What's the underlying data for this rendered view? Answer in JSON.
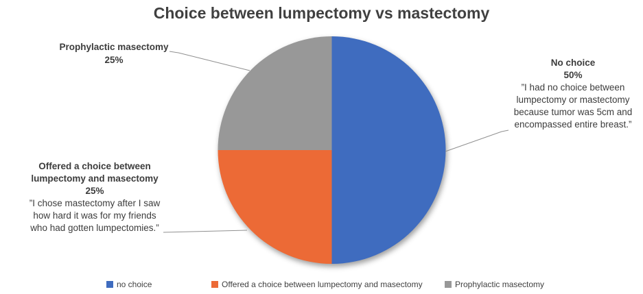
{
  "title": "Choice between lumpectomy vs mastectomy",
  "chart_data": {
    "type": "pie",
    "title": "Choice between lumpectomy vs mastectomy",
    "categories": [
      "no choice",
      "Offered a choice between lumpectomy and masectomy",
      "Prophylactic masectomy"
    ],
    "values": [
      50,
      25,
      25
    ],
    "unit": "percent",
    "colors": [
      "#3f6cbf",
      "#ec6a36",
      "#989898"
    ],
    "start_angle_deg": 0,
    "direction": "clockwise",
    "legend_position": "bottom",
    "annotations": [
      {
        "target": "Prophylactic masectomy",
        "heading_lines": [
          "Prophylactic masectomy",
          "25%"
        ],
        "quote_lines": []
      },
      {
        "target": "no choice",
        "heading_lines": [
          "No choice",
          "50%"
        ],
        "quote_lines": [
          "”I had no choice between",
          "lumpectomy or mastectomy",
          "because tumor was 5cm and",
          "encompassed entire breast.”"
        ]
      },
      {
        "target": "Offered a choice between lumpectomy and masectomy",
        "heading_lines": [
          "Offered a choice between",
          "lumpectomy and masectomy",
          "25%"
        ],
        "quote_lines": [
          "”I chose mastectomy after I saw",
          "how hard it was for my friends",
          "who had gotten lumpectomies.”"
        ]
      }
    ]
  },
  "legend": {
    "items": [
      {
        "label": "no choice",
        "color": "#3f6cbf"
      },
      {
        "label": "Offered a choice between lumpectomy and masectomy",
        "color": "#ec6a36"
      },
      {
        "label": "Prophylactic masectomy",
        "color": "#989898"
      }
    ]
  }
}
